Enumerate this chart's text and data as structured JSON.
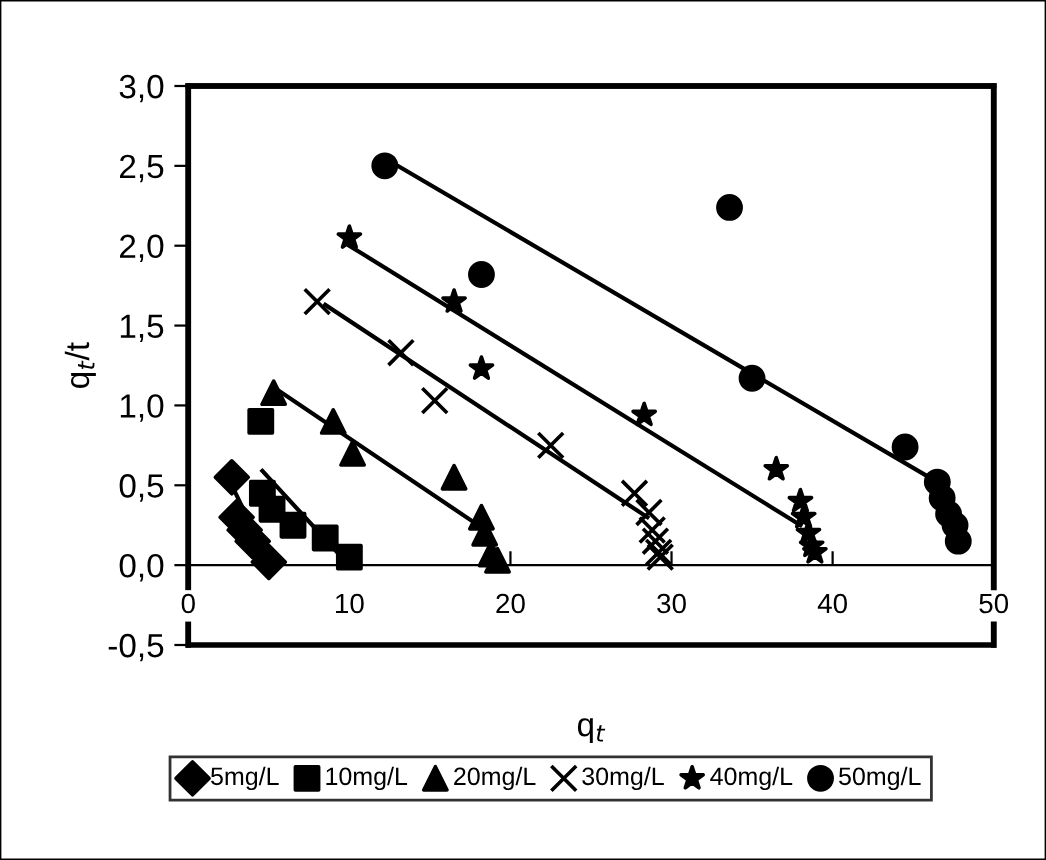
{
  "chart_data": {
    "type": "scatter",
    "xlabel": "q$_{t}$",
    "ylabel": "q$_{t}$/t",
    "xlim": [
      0,
      50
    ],
    "ylim": [
      -0.5,
      3.0
    ],
    "xticks": [
      0,
      10,
      20,
      30,
      40,
      50
    ],
    "yticks": [
      {
        "value": -0.5,
        "label": "-0,5"
      },
      {
        "value": 0,
        "label": "0,0"
      },
      {
        "value": 0.5,
        "label": "0,5"
      },
      {
        "value": 1.0,
        "label": "1,0"
      },
      {
        "value": 1.5,
        "label": "1,5"
      },
      {
        "value": 2.0,
        "label": "2,0"
      },
      {
        "value": 2.5,
        "label": "2,5"
      },
      {
        "value": 3.0,
        "label": "3,0"
      }
    ],
    "grid": false,
    "legend": "bottom",
    "series": [
      {
        "name": "5mg/L",
        "color": "#000000",
        "marker": "diamond",
        "x": [
          2.7,
          3.0,
          3.5,
          4.0,
          4.5,
          5.0
        ],
        "values": [
          0.55,
          0.3,
          0.22,
          0.15,
          null,
          0.02
        ]
      },
      {
        "name": "10mg/L",
        "color": "#000000",
        "marker": "square",
        "x": [
          4.5,
          4.6,
          5.2,
          6.5,
          8.5,
          9.2,
          9.5,
          10.0
        ],
        "values": [
          0.9,
          0.45,
          0.35,
          0.25,
          0.17,
          null,
          null,
          0.05
        ]
      },
      {
        "name": "20mg/L",
        "color": "#000000",
        "marker": "triangle",
        "x": [
          5.3,
          9.0,
          10.2,
          16.5,
          18.2,
          18.4,
          18.6,
          18.8,
          19.2
        ],
        "values": [
          1.08,
          0.9,
          0.7,
          0.55,
          0.3,
          0.2,
          null,
          0.07,
          0.03
        ]
      },
      {
        "name": "30mg/L",
        "color": "#000000",
        "marker": "cross",
        "x": [
          8.0,
          13.2,
          15.3,
          22.5,
          27.7,
          28.6,
          28.8,
          29.0,
          29.2,
          29.3
        ],
        "values": [
          1.65,
          1.33,
          1.03,
          0.75,
          0.45,
          0.33,
          0.22,
          0.15,
          0.08,
          0.05
        ]
      },
      {
        "name": "40mg/L",
        "color": "#000000",
        "marker": "star",
        "x": [
          10.0,
          16.5,
          18.2,
          28.3,
          36.5,
          38.0,
          38.2,
          38.5,
          38.7,
          38.9
        ],
        "values": [
          2.05,
          1.65,
          1.23,
          0.94,
          0.6,
          0.4,
          0.3,
          0.2,
          0.12,
          0.08
        ]
      },
      {
        "name": "50mg/L",
        "color": "#000000",
        "marker": "circle",
        "x": [
          12.2,
          18.2,
          33.6,
          35.0,
          44.5,
          46.5,
          46.8,
          47.2,
          47.6,
          47.8
        ],
        "values": [
          2.5,
          1.82,
          2.24,
          1.17,
          0.74,
          0.52,
          0.42,
          0.32,
          0.25,
          0.15
        ]
      },
      {
        "type": "line",
        "color": "#000000",
        "x": [
          2.7,
          5.0
        ],
        "values": [
          0.5,
          0.02
        ]
      },
      {
        "type": "line",
        "color": "#000000",
        "x": [
          4.6,
          9.8
        ],
        "values": [
          0.59,
          0.02
        ]
      },
      {
        "type": "line",
        "color": "#000000",
        "x": [
          5.5,
          18.0
        ],
        "values": [
          1.1,
          0.25
        ]
      },
      {
        "type": "line",
        "color": "#000000",
        "x": [
          8.5,
          28.5
        ],
        "values": [
          1.63,
          0.3
        ]
      },
      {
        "type": "line",
        "color": "#000000",
        "x": [
          10.0,
          38.0
        ],
        "values": [
          2.0,
          0.25
        ]
      },
      {
        "type": "line",
        "color": "#000000",
        "x": [
          13.0,
          46.0
        ],
        "values": [
          2.5,
          0.55
        ]
      }
    ]
  }
}
